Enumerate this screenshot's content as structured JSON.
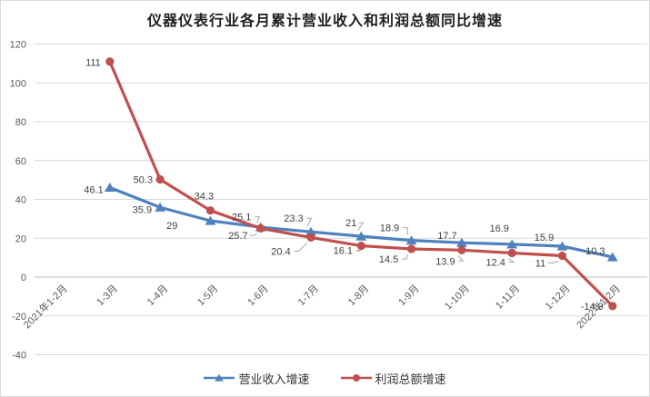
{
  "title": "仪器仪表行业各月累计营业收入和利润总额同比增速",
  "chart_data": {
    "type": "line",
    "title": "仪器仪表行业各月累计营业收入和利润总额同比增速",
    "categories": [
      "2021年1-2月",
      "1-3月",
      "1-4月",
      "1-5月",
      "1-6月",
      "1-7月",
      "1-8月",
      "1-9月",
      "1-10月",
      "1-11月",
      "1-12月",
      "2022年1-2月"
    ],
    "series": [
      {
        "name": "营业收入增速",
        "color": "#4e81bd",
        "marker": "triangle",
        "values": [
          null,
          46.1,
          35.9,
          29,
          25.7,
          23.3,
          21,
          18.9,
          17.7,
          16.9,
          15.9,
          10.3
        ]
      },
      {
        "name": "利润总额增速",
        "color": "#c0504d",
        "marker": "circle",
        "values": [
          null,
          111,
          50.3,
          34.3,
          25.1,
          20.4,
          16.1,
          14.5,
          13.9,
          12.4,
          11,
          -14.9
        ]
      }
    ],
    "xlabel": "",
    "ylabel": "",
    "ylim": [
      -40,
      120
    ],
    "yticks": [
      120,
      100,
      80,
      60,
      40,
      20,
      0,
      -20,
      -40
    ],
    "grid": true,
    "data_labels": true,
    "legend_position": "bottom"
  },
  "colors": {
    "grid": "#d9d9d9",
    "axis": "#bfbfbf",
    "tick_text": "#595959",
    "label_text": "#3f3f3f",
    "leader": "#a6a6a6",
    "background": "#ffffff",
    "border": "#d9d9d9"
  }
}
